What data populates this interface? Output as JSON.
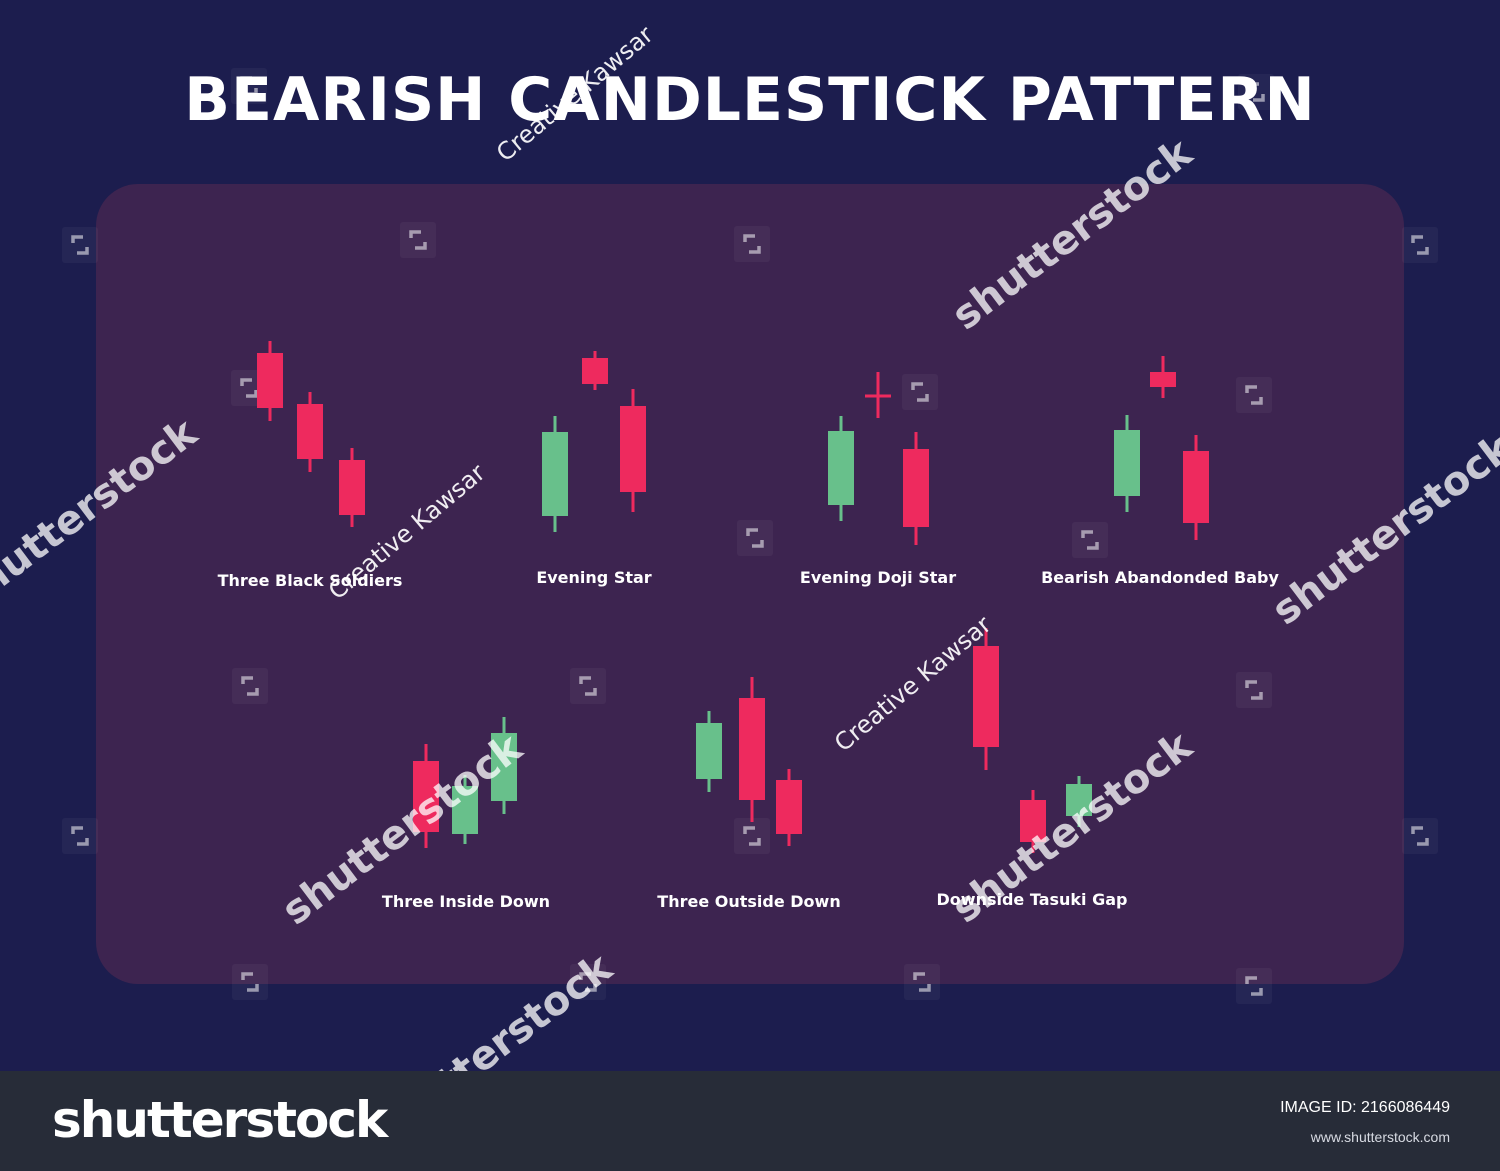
{
  "title": "BEARISH CANDLESTICK PATTERN",
  "colors": {
    "background": "#1c1d4e",
    "panel": "#3d2450",
    "bearish": "#ee2a5e",
    "bullish": "#68c08b",
    "footer": "#272c38",
    "text": "#ffffff"
  },
  "patterns": [
    {
      "name": "Three Black Soldiers",
      "candles": [
        "bearish",
        "bearish",
        "bearish"
      ]
    },
    {
      "name": "Evening Star",
      "candles": [
        "bullish",
        "bearish",
        "bearish"
      ]
    },
    {
      "name": "Evening Doji Star",
      "candles": [
        "bullish",
        "doji",
        "bearish"
      ]
    },
    {
      "name": "Bearish Abandonded Baby",
      "candles": [
        "bullish",
        "bearish",
        "bearish"
      ]
    },
    {
      "name": "Three Inside Down",
      "candles": [
        "bearish",
        "bullish",
        "bullish"
      ]
    },
    {
      "name": "Three Outside Down",
      "candles": [
        "bullish",
        "bearish",
        "bearish"
      ]
    },
    {
      "name": "Downside Tasuki Gap",
      "candles": [
        "bearish",
        "bearish",
        "bullish"
      ]
    }
  ],
  "watermarks": {
    "author": "Creative Kawsar",
    "stock": "shutterstock"
  },
  "footer": {
    "brand": "shutterstock",
    "image_id": "IMAGE ID: 2166086449",
    "site": "www.shutterstock.com"
  }
}
